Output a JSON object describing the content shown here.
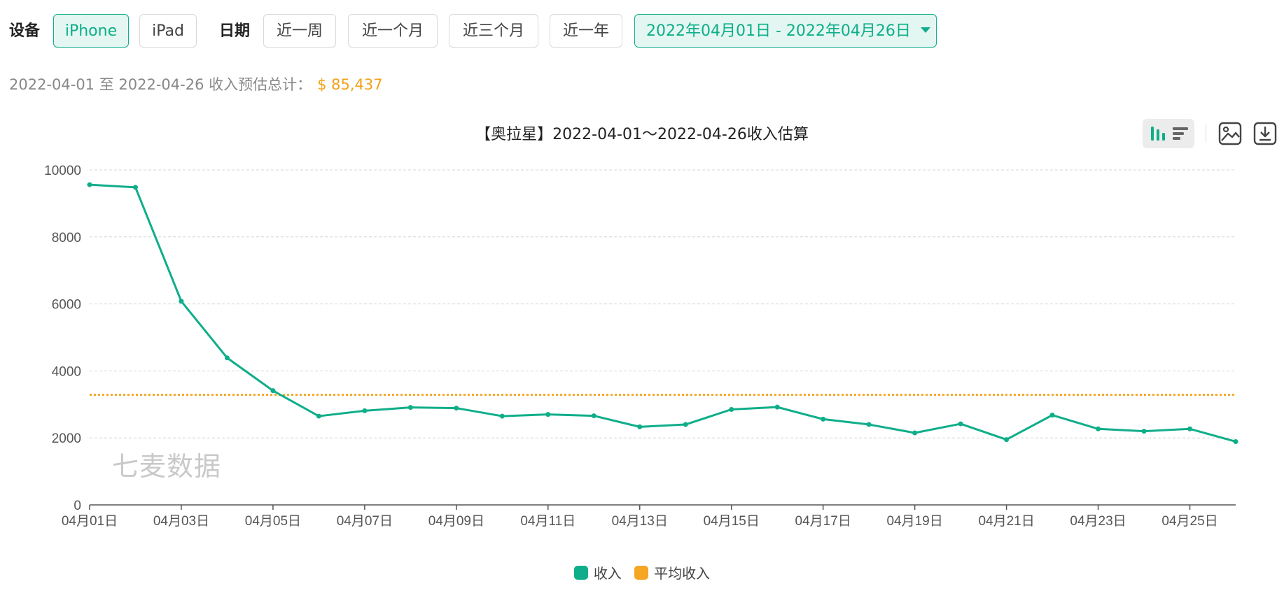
{
  "filters": {
    "device_label": "设备",
    "device_options": [
      "iPhone",
      "iPad"
    ],
    "device_selected": "iPhone",
    "date_label": "日期",
    "date_presets": [
      "近一周",
      "近一个月",
      "近三个月",
      "近一年"
    ],
    "date_range_value": "2022年04月01日 - 2022年04月26日"
  },
  "summary": {
    "text": "2022-04-01 至 2022-04-26 收入预估总计：",
    "total": "$ 85,437"
  },
  "toolbar": {
    "icons": [
      "bar-chart-view-icon",
      "horizontal-bar-view-icon",
      "save-image-icon",
      "download-icon"
    ]
  },
  "watermark": "七麦数据",
  "colors": {
    "accent": "#0fae8a",
    "average": "#f5a623"
  },
  "chart_data": {
    "type": "line",
    "title": "【奥拉星】2022-04-01～2022-04-26收入估算",
    "x": [
      "04月01日",
      "04月02日",
      "04月03日",
      "04月04日",
      "04月05日",
      "04月06日",
      "04月07日",
      "04月08日",
      "04月09日",
      "04月10日",
      "04月11日",
      "04月12日",
      "04月13日",
      "04月14日",
      "04月15日",
      "04月16日",
      "04月17日",
      "04月18日",
      "04月19日",
      "04月20日",
      "04月21日",
      "04月22日",
      "04月23日",
      "04月24日",
      "04月25日",
      "04月26日"
    ],
    "x_tick_labels": [
      "04月01日",
      "04月03日",
      "04月05日",
      "04月07日",
      "04月09日",
      "04月11日",
      "04月13日",
      "04月15日",
      "04月17日",
      "04月19日",
      "04月21日",
      "04月23日",
      "04月25日"
    ],
    "series": [
      {
        "name": "收入",
        "color": "#0fae8a",
        "values": [
          9560,
          9480,
          6080,
          4390,
          3410,
          2650,
          2810,
          2910,
          2890,
          2650,
          2700,
          2660,
          2330,
          2400,
          2850,
          2920,
          2560,
          2400,
          2150,
          2420,
          1950,
          2680,
          2270,
          2200,
          2270,
          1890
        ]
      },
      {
        "name": "平均收入",
        "color": "#f5a623",
        "style": "dotted",
        "value": 3286
      }
    ],
    "yticks": [
      0,
      2000,
      4000,
      6000,
      8000,
      10000
    ],
    "ylim": [
      0,
      10000
    ],
    "grid": true,
    "legend_position": "bottom-center"
  }
}
